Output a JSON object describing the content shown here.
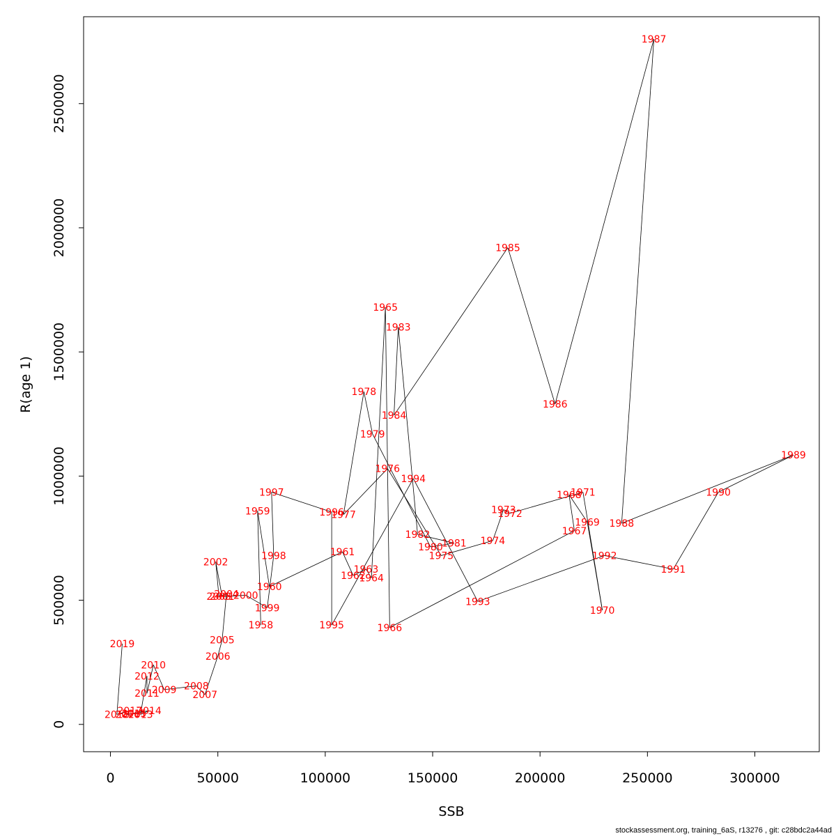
{
  "footer": "stockassessment.org, training_6aS, r13276 , git: c28bdc2a44ad",
  "chart_data": {
    "type": "line",
    "xlabel": "SSB",
    "ylabel": "R(age 1)",
    "xlim": [
      -12500,
      330000
    ],
    "ylim": [
      -110000,
      2850000
    ],
    "xticks": [
      0,
      50000,
      100000,
      150000,
      200000,
      250000,
      300000
    ],
    "yticks": [
      0,
      500000,
      1000000,
      1500000,
      2000000,
      2500000
    ],
    "line_color": "#000000",
    "label_color": "#ff0000",
    "points": [
      {
        "year": "1958",
        "ssb": 70000,
        "r": 400000
      },
      {
        "year": "1959",
        "ssb": 68500,
        "r": 860000
      },
      {
        "year": "1960",
        "ssb": 74000,
        "r": 555000
      },
      {
        "year": "1961",
        "ssb": 108000,
        "r": 695000
      },
      {
        "year": "1962",
        "ssb": 113000,
        "r": 600000
      },
      {
        "year": "1963",
        "ssb": 119000,
        "r": 625000
      },
      {
        "year": "1964",
        "ssb": 121500,
        "r": 590000
      },
      {
        "year": "1965",
        "ssb": 128000,
        "r": 1680000
      },
      {
        "year": "1966",
        "ssb": 130000,
        "r": 390000
      },
      {
        "year": "1967",
        "ssb": 216000,
        "r": 780000
      },
      {
        "year": "1968",
        "ssb": 213500,
        "r": 925000
      },
      {
        "year": "1969",
        "ssb": 222000,
        "r": 815000
      },
      {
        "year": "1970",
        "ssb": 229000,
        "r": 460000
      },
      {
        "year": "1971",
        "ssb": 220000,
        "r": 935000
      },
      {
        "year": "1972",
        "ssb": 186000,
        "r": 850000
      },
      {
        "year": "1973",
        "ssb": 183000,
        "r": 865000
      },
      {
        "year": "1974",
        "ssb": 178000,
        "r": 740000
      },
      {
        "year": "1975",
        "ssb": 154000,
        "r": 680000
      },
      {
        "year": "1976",
        "ssb": 129000,
        "r": 1030000
      },
      {
        "year": "1977",
        "ssb": 108500,
        "r": 845000
      },
      {
        "year": "1978",
        "ssb": 118000,
        "r": 1340000
      },
      {
        "year": "1979",
        "ssb": 122000,
        "r": 1170000
      },
      {
        "year": "1980",
        "ssb": 149000,
        "r": 715000
      },
      {
        "year": "1981",
        "ssb": 160000,
        "r": 730000
      },
      {
        "year": "1982",
        "ssb": 143000,
        "r": 765000
      },
      {
        "year": "1983",
        "ssb": 134000,
        "r": 1600000
      },
      {
        "year": "1984",
        "ssb": 132000,
        "r": 1245000
      },
      {
        "year": "1985",
        "ssb": 185000,
        "r": 1920000
      },
      {
        "year": "1986",
        "ssb": 207000,
        "r": 1290000
      },
      {
        "year": "1987",
        "ssb": 253000,
        "r": 2760000
      },
      {
        "year": "1988",
        "ssb": 238000,
        "r": 810000
      },
      {
        "year": "1989",
        "ssb": 318000,
        "r": 1085000
      },
      {
        "year": "1990",
        "ssb": 283000,
        "r": 935000
      },
      {
        "year": "1991",
        "ssb": 262000,
        "r": 625000
      },
      {
        "year": "1992",
        "ssb": 230000,
        "r": 680000
      },
      {
        "year": "1993",
        "ssb": 171000,
        "r": 495000
      },
      {
        "year": "1994",
        "ssb": 141000,
        "r": 990000
      },
      {
        "year": "1995",
        "ssb": 103000,
        "r": 400000
      },
      {
        "year": "1996",
        "ssb": 103000,
        "r": 855000
      },
      {
        "year": "1997",
        "ssb": 75000,
        "r": 935000
      },
      {
        "year": "1998",
        "ssb": 76000,
        "r": 680000
      },
      {
        "year": "1999",
        "ssb": 73000,
        "r": 470000
      },
      {
        "year": "2000",
        "ssb": 63000,
        "r": 520000
      },
      {
        "year": "2001",
        "ssb": 52000,
        "r": 515000
      },
      {
        "year": "2002",
        "ssb": 49000,
        "r": 655000
      },
      {
        "year": "2003",
        "ssb": 50500,
        "r": 515000
      },
      {
        "year": "2004",
        "ssb": 54000,
        "r": 525000
      },
      {
        "year": "2005",
        "ssb": 52000,
        "r": 340000
      },
      {
        "year": "2006",
        "ssb": 50000,
        "r": 275000
      },
      {
        "year": "2007",
        "ssb": 44000,
        "r": 120000
      },
      {
        "year": "2008",
        "ssb": 40000,
        "r": 155000
      },
      {
        "year": "2009",
        "ssb": 25000,
        "r": 140000
      },
      {
        "year": "2010",
        "ssb": 20000,
        "r": 240000
      },
      {
        "year": "2011",
        "ssb": 17000,
        "r": 125000
      },
      {
        "year": "2012",
        "ssb": 17000,
        "r": 195000
      },
      {
        "year": "2013",
        "ssb": 14000,
        "r": 40000
      },
      {
        "year": "2014",
        "ssb": 18000,
        "r": 55000
      },
      {
        "year": "2015",
        "ssb": 11000,
        "r": 45000
      },
      {
        "year": "2016",
        "ssb": 8000,
        "r": 40000
      },
      {
        "year": "2017",
        "ssb": 9000,
        "r": 55000
      },
      {
        "year": "2018",
        "ssb": 3000,
        "r": 40000
      },
      {
        "year": "2019",
        "ssb": 5500,
        "r": 325000
      }
    ]
  }
}
